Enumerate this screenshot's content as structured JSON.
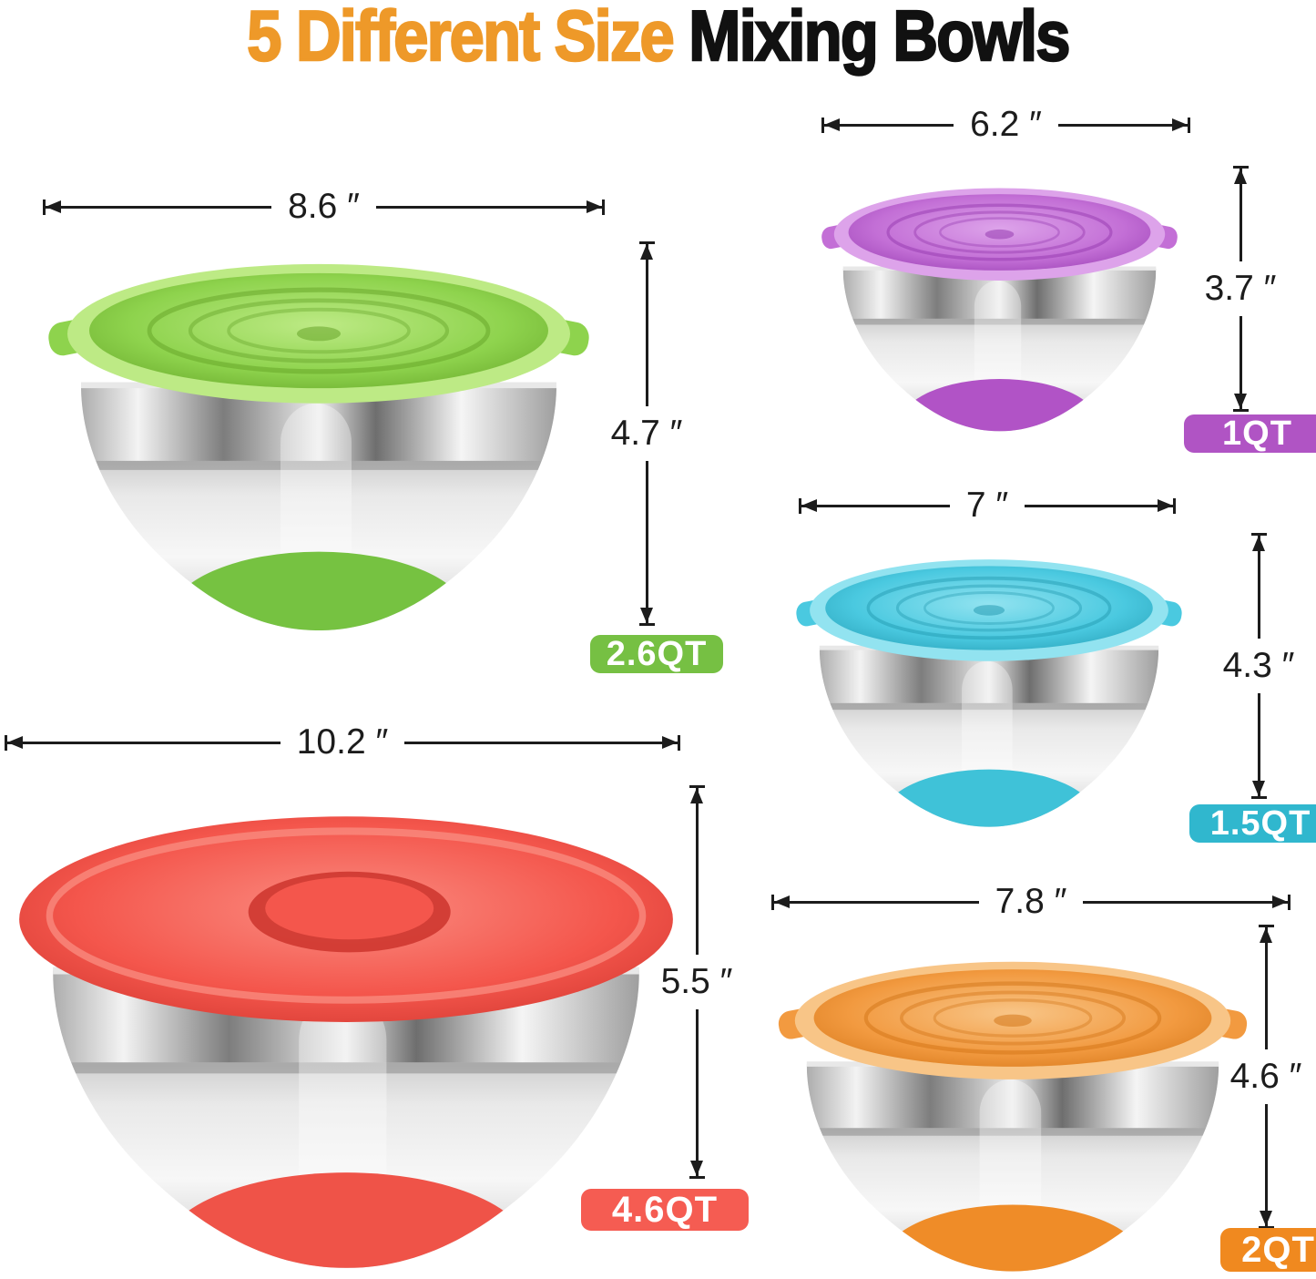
{
  "title": {
    "accent": "5 Different Size",
    "rest": " Mixing Bowls",
    "accent_color": "#EE9929",
    "text_color": "#111111"
  },
  "dimension_color": "#1c1c1c",
  "badge_text_color": "#ffffff",
  "bowls": [
    {
      "capacity": "2.6QT",
      "diameter": "8.6 ″",
      "height": "4.7 ″",
      "lid_style": "ring",
      "colors": {
        "lid": "#8ed34d",
        "lid_light": "#bdea85",
        "lid_dark": "#5f9e22",
        "base": "#76c241",
        "badge": "#76c043"
      }
    },
    {
      "capacity": "1QT",
      "diameter": "6.2 ″",
      "height": "3.7 ″",
      "lid_style": "ring",
      "colors": {
        "lid": "#c36fd6",
        "lid_light": "#dda3ea",
        "lid_dark": "#9033ab",
        "base": "#b153c6",
        "badge": "#b054c4"
      }
    },
    {
      "capacity": "1.5QT",
      "diameter": "7 ″",
      "height": "4.3 ″",
      "lid_style": "ring",
      "colors": {
        "lid": "#4ac9e0",
        "lid_light": "#92e3f0",
        "lid_dark": "#1f96ad",
        "base": "#3fc2d8",
        "badge": "#30b7ce"
      }
    },
    {
      "capacity": "4.6QT",
      "diameter": "10.2 ″",
      "height": "5.5 ″",
      "lid_style": "flat-hub",
      "colors": {
        "lid": "#f4564c",
        "lid_light": "#fa8d82",
        "lid_dark": "#c92f28",
        "base": "#ef5348",
        "badge": "#f55c52"
      }
    },
    {
      "capacity": "2QT",
      "diameter": "7.8 ″",
      "height": "4.6 ″",
      "lid_style": "ring",
      "colors": {
        "lid": "#f29a40",
        "lid_light": "#f8c587",
        "lid_dark": "#cf6f10",
        "base": "#ef8c28",
        "badge": "#f0891f"
      }
    }
  ]
}
